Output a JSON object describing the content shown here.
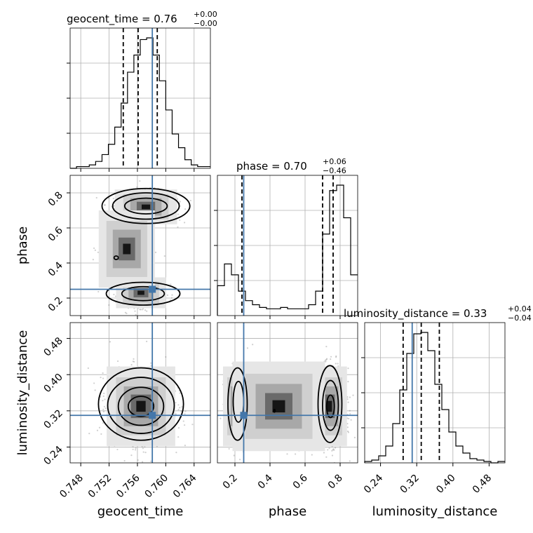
{
  "chart_data": {
    "type": "corner",
    "parameters": [
      "geocent_time",
      "phase",
      "luminosity_distance"
    ],
    "titles": [
      {
        "param": "geocent_time",
        "label": "geocent_time = 0.76",
        "plus": "+0.00",
        "minus": "−0.00"
      },
      {
        "param": "phase",
        "label": "phase = 0.70",
        "plus": "+0.06",
        "minus": "−0.46"
      },
      {
        "param": "luminosity_distance",
        "label": "luminosity_distance = 0.33",
        "plus": "+0.04",
        "minus": "−0.04"
      }
    ],
    "ranges": {
      "geocent_time": [
        0.7465,
        0.7663
      ],
      "phase": [
        0.1,
        0.9
      ],
      "luminosity_distance": [
        0.205,
        0.515
      ]
    },
    "ticks": {
      "geocent_time": [
        "0.748",
        "0.752",
        "0.756",
        "0.760",
        "0.764"
      ],
      "phase": [
        "0.2",
        "0.4",
        "0.6",
        "0.8"
      ],
      "luminosity_distance": [
        "0.24",
        "0.32",
        "0.40",
        "0.48"
      ]
    },
    "truths": {
      "geocent_time": 0.7581,
      "phase": 0.25,
      "luminosity_distance": 0.31
    },
    "quantiles": {
      "geocent_time": [
        0.754,
        0.7561,
        0.7588
      ],
      "phase": [
        0.24,
        0.7,
        0.76
      ],
      "luminosity_distance": [
        0.29,
        0.33,
        0.37
      ]
    },
    "histograms": {
      "geocent_time": [
        0,
        1,
        1,
        2,
        4,
        8,
        14,
        24,
        38,
        56,
        66,
        75,
        76,
        66,
        51,
        34,
        20,
        12,
        5,
        2,
        1,
        1
      ],
      "phase": [
        22,
        38,
        30,
        18,
        11,
        8,
        6,
        5,
        5,
        6,
        5,
        5,
        5,
        8,
        18,
        60,
        92,
        96,
        72,
        30
      ],
      "luminosity_distance": [
        1,
        2,
        5,
        12,
        28,
        52,
        78,
        92,
        93,
        80,
        56,
        38,
        22,
        12,
        7,
        3,
        2,
        1,
        0,
        1
      ]
    },
    "grid": true,
    "colors": {
      "truth": "#4477aa",
      "hist": "#000000",
      "contour": "#000000",
      "quantile": "#000000"
    }
  }
}
